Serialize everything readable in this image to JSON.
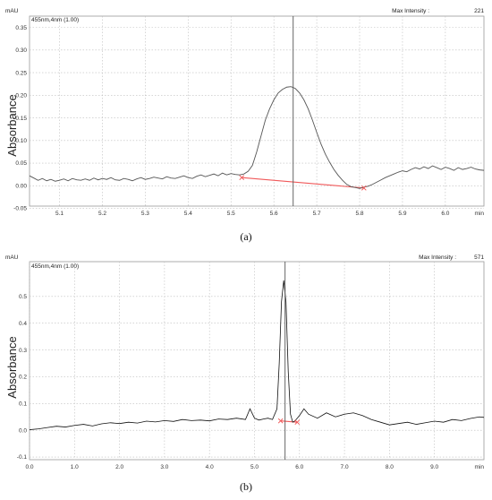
{
  "chart_data": [
    {
      "type": "line",
      "caption": "(a)",
      "unit_label": "mAU",
      "channel_label": "455nm,4nm (1.00)",
      "max_intensity_label": "Max Intensity :",
      "max_intensity_value": "221",
      "ylabel": "Absorbance",
      "xunit": "min",
      "xlim": [
        5.03,
        6.09
      ],
      "ylim": [
        -0.045,
        0.375
      ],
      "xticks": [
        "5.1",
        "5.2",
        "5.3",
        "5.4",
        "5.5",
        "5.6",
        "5.7",
        "5.8",
        "5.9",
        "6.0"
      ],
      "yticks": [
        "0.35",
        "0.30",
        "0.25",
        "0.20",
        "0.15",
        "0.10",
        "0.05",
        "0.00",
        "-0.05"
      ],
      "series": [
        {
          "x": [
            5.03,
            5.04,
            5.05,
            5.06,
            5.07,
            5.08,
            5.09,
            5.1,
            5.11,
            5.12,
            5.13,
            5.14,
            5.15,
            5.16,
            5.17,
            5.18,
            5.19,
            5.2,
            5.21,
            5.22,
            5.23,
            5.24,
            5.25,
            5.26,
            5.27,
            5.28,
            5.29,
            5.3,
            5.31,
            5.32,
            5.33,
            5.34,
            5.35,
            5.36,
            5.37,
            5.38,
            5.39,
            5.4,
            5.41,
            5.42,
            5.43,
            5.44,
            5.45,
            5.46,
            5.47,
            5.48,
            5.49,
            5.5,
            5.51,
            5.52,
            5.53,
            5.54,
            5.55,
            5.56,
            5.57,
            5.58,
            5.59,
            5.6,
            5.61,
            5.62,
            5.63,
            5.64,
            5.65,
            5.66,
            5.67,
            5.68,
            5.69,
            5.7,
            5.71,
            5.72,
            5.73,
            5.74,
            5.75,
            5.76,
            5.77,
            5.78,
            5.79,
            5.8,
            5.81,
            5.82,
            5.83,
            5.84,
            5.85,
            5.86,
            5.87,
            5.88,
            5.89,
            5.9,
            5.91,
            5.92,
            5.93,
            5.94,
            5.95,
            5.96,
            5.97,
            5.98,
            5.99,
            6.0,
            6.01,
            6.02,
            6.03,
            6.04,
            6.05,
            6.06,
            6.07,
            6.08,
            6.09
          ],
          "y": [
            0.022,
            0.017,
            0.012,
            0.016,
            0.011,
            0.014,
            0.01,
            0.012,
            0.015,
            0.011,
            0.016,
            0.013,
            0.012,
            0.015,
            0.012,
            0.017,
            0.013,
            0.016,
            0.014,
            0.018,
            0.013,
            0.012,
            0.016,
            0.014,
            0.011,
            0.015,
            0.018,
            0.014,
            0.016,
            0.019,
            0.017,
            0.015,
            0.02,
            0.017,
            0.016,
            0.019,
            0.022,
            0.018,
            0.016,
            0.021,
            0.024,
            0.02,
            0.023,
            0.026,
            0.022,
            0.028,
            0.024,
            0.027,
            0.025,
            0.024,
            0.026,
            0.032,
            0.045,
            0.075,
            0.11,
            0.145,
            0.17,
            0.19,
            0.205,
            0.213,
            0.218,
            0.219,
            0.215,
            0.205,
            0.19,
            0.17,
            0.145,
            0.118,
            0.092,
            0.07,
            0.052,
            0.036,
            0.023,
            0.012,
            0.003,
            -0.002,
            -0.004,
            -0.006,
            -0.003,
            -0.001,
            0.003,
            0.008,
            0.013,
            0.018,
            0.022,
            0.026,
            0.03,
            0.033,
            0.031,
            0.036,
            0.04,
            0.037,
            0.042,
            0.038,
            0.044,
            0.04,
            0.036,
            0.041,
            0.038,
            0.034,
            0.04,
            0.036,
            0.038,
            0.041,
            0.037,
            0.035,
            0.034
          ]
        }
      ],
      "marker_x": 5.645,
      "baseline": {
        "x": [
          5.525,
          5.81
        ],
        "y": [
          0.018,
          -0.005
        ]
      }
    },
    {
      "type": "line",
      "caption": "(b)",
      "unit_label": "mAU",
      "channel_label": "455nm,4nm (1.00)",
      "max_intensity_label": "Max Intensity :",
      "max_intensity_value": "571",
      "ylabel": "Absorbance",
      "xunit": "min",
      "xlim": [
        0.0,
        10.1
      ],
      "ylim": [
        -0.11,
        0.63
      ],
      "xticks": [
        "0.0",
        "1.0",
        "2.0",
        "3.0",
        "4.0",
        "5.0",
        "6.0",
        "7.0",
        "8.0",
        "9.0"
      ],
      "yticks": [
        "0.5",
        "0.4",
        "0.3",
        "0.2",
        "0.1",
        "0.0",
        "-0.1"
      ],
      "series": [
        {
          "x": [
            0.0,
            0.2,
            0.4,
            0.6,
            0.8,
            1.0,
            1.2,
            1.4,
            1.6,
            1.8,
            2.0,
            2.2,
            2.4,
            2.6,
            2.8,
            3.0,
            3.2,
            3.4,
            3.6,
            3.8,
            4.0,
            4.2,
            4.4,
            4.6,
            4.8,
            4.9,
            5.0,
            5.1,
            5.2,
            5.3,
            5.4,
            5.5,
            5.55,
            5.6,
            5.65,
            5.7,
            5.75,
            5.8,
            5.85,
            5.9,
            6.0,
            6.1,
            6.2,
            6.4,
            6.6,
            6.8,
            7.0,
            7.2,
            7.4,
            7.6,
            7.8,
            8.0,
            8.2,
            8.4,
            8.6,
            8.8,
            9.0,
            9.2,
            9.4,
            9.6,
            9.8,
            10.0,
            10.1
          ],
          "y": [
            0.002,
            0.005,
            0.01,
            0.015,
            0.012,
            0.018,
            0.022,
            0.016,
            0.024,
            0.028,
            0.025,
            0.03,
            0.027,
            0.034,
            0.031,
            0.036,
            0.033,
            0.04,
            0.036,
            0.038,
            0.035,
            0.042,
            0.04,
            0.045,
            0.04,
            0.08,
            0.045,
            0.038,
            0.042,
            0.045,
            0.04,
            0.08,
            0.25,
            0.48,
            0.56,
            0.48,
            0.22,
            0.06,
            0.03,
            0.035,
            0.055,
            0.08,
            0.06,
            0.045,
            0.065,
            0.05,
            0.06,
            0.065,
            0.055,
            0.04,
            0.03,
            0.02,
            0.025,
            0.03,
            0.022,
            0.028,
            0.034,
            0.03,
            0.04,
            0.036,
            0.044,
            0.05,
            0.048
          ]
        }
      ],
      "marker_x": 5.68,
      "baseline": {
        "x": [
          5.58,
          5.95
        ],
        "y": [
          0.035,
          0.03
        ]
      }
    }
  ]
}
